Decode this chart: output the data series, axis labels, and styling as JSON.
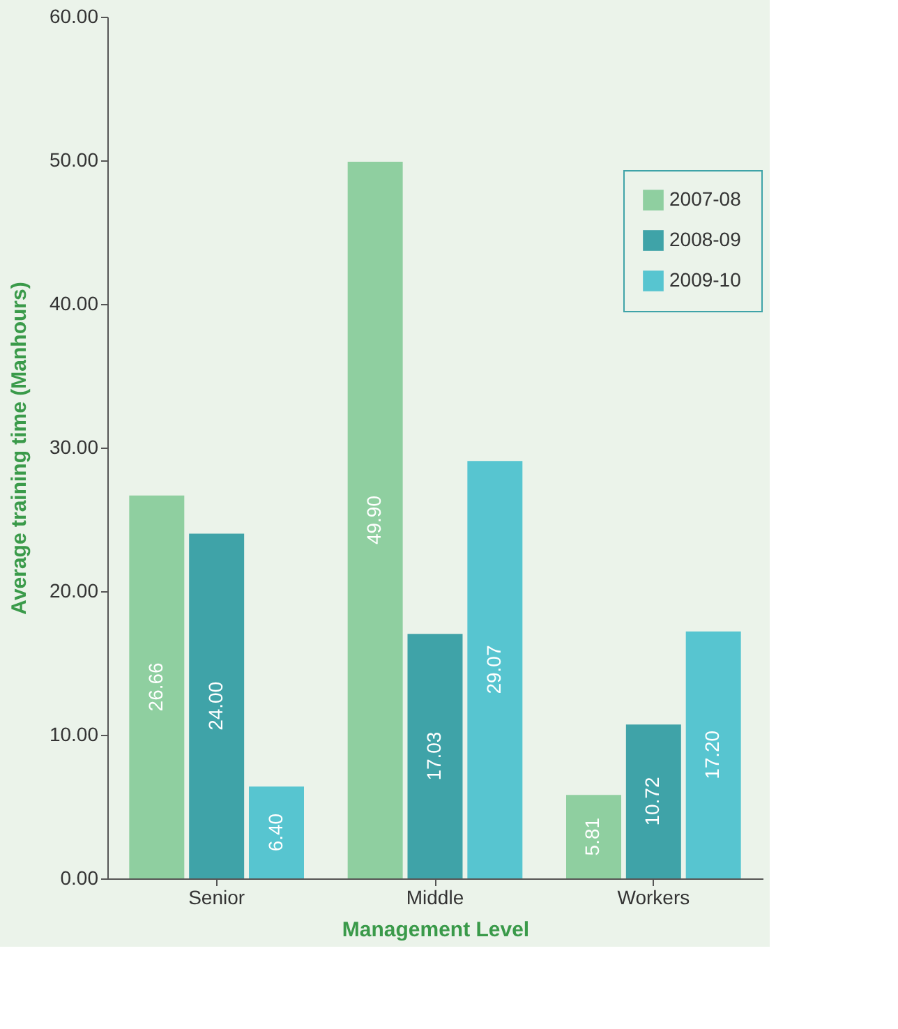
{
  "chart_data": {
    "type": "bar",
    "xlabel": "Management Level",
    "ylabel": "Average training time (Manhours)",
    "categories": [
      "Senior",
      "Middle",
      "Workers"
    ],
    "series": [
      {
        "name": "2007-08",
        "color": "#8fcfa0",
        "values": [
          26.66,
          49.9,
          5.81
        ],
        "value_labels": [
          "26.66",
          "49.90",
          "5.81"
        ]
      },
      {
        "name": "2008-09",
        "color": "#3fa3a8",
        "values": [
          24.0,
          17.03,
          10.72
        ],
        "value_labels": [
          "24.00",
          "17.03",
          "10.72"
        ]
      },
      {
        "name": "2009-10",
        "color": "#57c5d0",
        "values": [
          6.4,
          29.07,
          17.2
        ],
        "value_labels": [
          "6.40",
          "29.07",
          "17.20"
        ]
      }
    ],
    "ylim": [
      0,
      60
    ],
    "yticks": [
      {
        "value": 0,
        "label": "0.00"
      },
      {
        "value": 10,
        "label": "10.00"
      },
      {
        "value": 20,
        "label": "20.00"
      },
      {
        "value": 30,
        "label": "30.00"
      },
      {
        "value": 40,
        "label": "40.00"
      },
      {
        "value": 50,
        "label": "50.00"
      },
      {
        "value": 60,
        "label": "60.00"
      }
    ],
    "grid": false,
    "legend": "top right"
  }
}
